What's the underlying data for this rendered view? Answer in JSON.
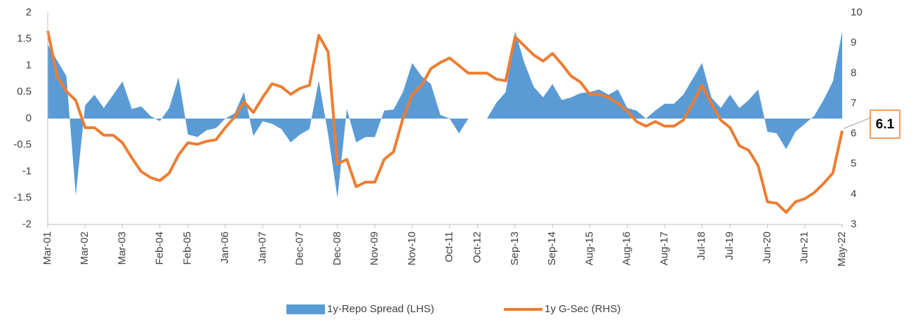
{
  "chart_data": {
    "type": "area_line",
    "categories": [
      "Mar-01",
      null,
      null,
      null,
      "Mar-02",
      null,
      null,
      null,
      "Mar-03",
      null,
      null,
      null,
      "Feb-04",
      null,
      null,
      "Feb-05",
      null,
      null,
      null,
      "Jan-06",
      null,
      null,
      null,
      "Jan-07",
      null,
      null,
      null,
      "Dec-07",
      null,
      null,
      null,
      "Dec-08",
      null,
      null,
      null,
      "Nov-09",
      null,
      null,
      null,
      "Nov-10",
      null,
      null,
      null,
      "Oct-11",
      null,
      null,
      "Oct-12",
      null,
      null,
      null,
      "Sep-13",
      null,
      null,
      null,
      "Sep-14",
      null,
      null,
      null,
      "Aug-15",
      null,
      null,
      null,
      "Aug-16",
      null,
      null,
      null,
      "Aug-17",
      null,
      null,
      null,
      "Jul-18",
      null,
      null,
      "Jul-19",
      null,
      null,
      null,
      "Jun-20",
      null,
      null,
      null,
      "Jun-21",
      null,
      null,
      null,
      "May-22"
    ],
    "series": [
      {
        "name": "1y-Repo Spread (LHS)",
        "color": "#5b9bd5",
        "kind": "area",
        "axis": "y",
        "values": [
          1.4,
          1.1,
          0.8,
          -1.45,
          0.25,
          0.45,
          0.2,
          0.45,
          0.7,
          0.18,
          0.23,
          0.05,
          -0.05,
          0.2,
          0.78,
          -0.3,
          -0.35,
          -0.22,
          -0.18,
          0,
          0.1,
          0.5,
          -0.33,
          -0.05,
          -0.1,
          -0.2,
          -0.45,
          -0.3,
          -0.2,
          0.72,
          -0.3,
          -1.5,
          0.18,
          -0.45,
          -0.35,
          -0.35,
          0.15,
          0.17,
          0.5,
          1.05,
          0.8,
          0.65,
          0.07,
          0,
          -0.28,
          0,
          0,
          0,
          0.3,
          0.5,
          1.65,
          1.05,
          0.6,
          0.4,
          0.65,
          0.35,
          0.4,
          0.48,
          0.5,
          0.55,
          0.45,
          0.55,
          0.2,
          0.15,
          0,
          0.15,
          0.28,
          0.28,
          0.45,
          0.75,
          1.05,
          0.4,
          0.2,
          0.45,
          0.2,
          0.35,
          0.55,
          -0.25,
          -0.28,
          -0.58,
          -0.25,
          -0.1,
          0.05,
          0.35,
          0.7,
          1.65
        ]
      },
      {
        "name": "1y G-Sec (RHS)",
        "color": "#ed7d31",
        "kind": "line",
        "axis": "y2",
        "values": [
          9.4,
          7.9,
          7.4,
          7.1,
          6.2,
          6.2,
          5.95,
          5.95,
          5.7,
          5.2,
          4.75,
          4.55,
          4.45,
          4.7,
          5.3,
          5.7,
          5.65,
          5.75,
          5.8,
          6.2,
          6.55,
          7.05,
          6.7,
          7.2,
          7.65,
          7.55,
          7.3,
          7.5,
          7.6,
          9.25,
          8.7,
          5.0,
          5.15,
          4.25,
          4.4,
          4.4,
          5.15,
          5.4,
          6.5,
          7.3,
          7.6,
          8.15,
          8.35,
          8.5,
          8.25,
          8.0,
          8.0,
          8.0,
          7.8,
          7.75,
          9.2,
          8.9,
          8.6,
          8.4,
          8.65,
          8.3,
          7.9,
          7.7,
          7.3,
          7.3,
          7.2,
          7.0,
          6.75,
          6.4,
          6.25,
          6.4,
          6.25,
          6.25,
          6.45,
          7.0,
          7.6,
          7.0,
          6.45,
          6.2,
          5.6,
          5.45,
          4.95,
          3.75,
          3.7,
          3.4,
          3.75,
          3.85,
          4.05,
          4.35,
          4.7,
          6.1
        ]
      }
    ],
    "ylim": [
      -2,
      2
    ],
    "yticks": [
      -2,
      -1.5,
      -1,
      -0.5,
      0,
      0.5,
      1,
      1.5,
      2
    ],
    "y2lim": [
      3,
      10
    ],
    "y2ticks": [
      3,
      4,
      5,
      6,
      7,
      8,
      9,
      10
    ],
    "grid": false,
    "legend": "bottom"
  }
}
